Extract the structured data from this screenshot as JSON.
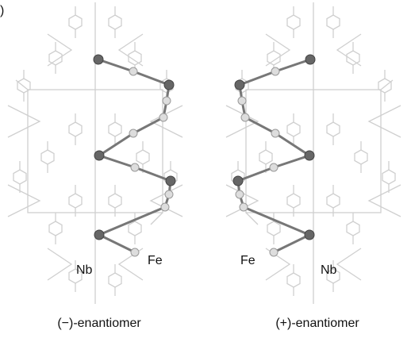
{
  "panel_label": ")",
  "left": {
    "caption": "(−)-enantiomer",
    "labels": [
      "Nb",
      "Fe"
    ]
  },
  "right": {
    "caption": "(+)-enantiomer",
    "labels": [
      "Fe",
      "Nb"
    ]
  }
}
